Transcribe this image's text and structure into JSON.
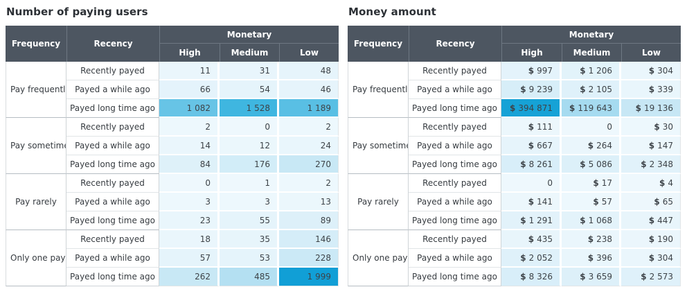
{
  "style": {
    "header_bg": "#4d5661",
    "header_text": "#ffffff",
    "header_line": "#6e7883",
    "title_text": "#2d3136",
    "label_text": "#363b40",
    "value_text": "#3d4348",
    "row_line": "#e1e5e7",
    "group_line": "#b6bdc3",
    "col_line": "#cfd4d7",
    "outer_line": "#d8dcdf",
    "heat_gap": "#ffffff",
    "heat_max_color": "#119fd6",
    "heat_min_color": "#eef8fd"
  },
  "chart_data": [
    {
      "type": "heatmap",
      "title": "Number of paying users",
      "currency": false,
      "headers": {
        "frequency": "Frequency",
        "recency": "Recency",
        "monetary": "Monetary",
        "levels": [
          "High",
          "Medium",
          "Low"
        ]
      },
      "groups": [
        {
          "frequency": "Pay frequently",
          "rows": [
            {
              "recency": "Recently payed",
              "cells": [
                {
                  "value": 11,
                  "text": "11",
                  "bg": "#eaf6fc"
                },
                {
                  "value": 31,
                  "text": "31",
                  "bg": "#e8f5fc"
                },
                {
                  "value": 48,
                  "text": "48",
                  "bg": "#e6f4fb"
                }
              ]
            },
            {
              "recency": "Payed a while ago",
              "cells": [
                {
                  "value": 66,
                  "text": "66",
                  "bg": "#e4f3fb"
                },
                {
                  "value": 54,
                  "text": "54",
                  "bg": "#e5f4fb"
                },
                {
                  "value": 46,
                  "text": "46",
                  "bg": "#e6f4fb"
                }
              ]
            },
            {
              "recency": "Payed long time ago",
              "cells": [
                {
                  "value": 1082,
                  "text": "1 082",
                  "bg": "#67c4e6"
                },
                {
                  "value": 1528,
                  "text": "1 528",
                  "bg": "#3fb6e0"
                },
                {
                  "value": 1189,
                  "text": "1 189",
                  "bg": "#59bfe4"
                }
              ]
            }
          ]
        },
        {
          "frequency": "Pay sometimes",
          "rows": [
            {
              "recency": "Recently payed",
              "cells": [
                {
                  "value": 2,
                  "text": "2",
                  "bg": "#edf8fd"
                },
                {
                  "value": 0,
                  "text": "0",
                  "bg": "#eef8fd"
                },
                {
                  "value": 2,
                  "text": "2",
                  "bg": "#edf8fd"
                }
              ]
            },
            {
              "recency": "Payed a while ago",
              "cells": [
                {
                  "value": 14,
                  "text": "14",
                  "bg": "#eaf6fc"
                },
                {
                  "value": 12,
                  "text": "12",
                  "bg": "#ebf7fc"
                },
                {
                  "value": 24,
                  "text": "24",
                  "bg": "#e9f6fc"
                }
              ]
            },
            {
              "recency": "Payed long time ago",
              "cells": [
                {
                  "value": 84,
                  "text": "84",
                  "bg": "#def1f9"
                },
                {
                  "value": 176,
                  "text": "176",
                  "bg": "#d2edf8"
                },
                {
                  "value": 270,
                  "text": "270",
                  "bg": "#c8e8f5"
                }
              ]
            }
          ]
        },
        {
          "frequency": "Pay rarely",
          "rows": [
            {
              "recency": "Recently payed",
              "cells": [
                {
                  "value": 0,
                  "text": "0",
                  "bg": "#eef8fd"
                },
                {
                  "value": 1,
                  "text": "1",
                  "bg": "#eef8fd"
                },
                {
                  "value": 2,
                  "text": "2",
                  "bg": "#edf8fd"
                }
              ]
            },
            {
              "recency": "Payed a while ago",
              "cells": [
                {
                  "value": 3,
                  "text": "3",
                  "bg": "#edf8fd"
                },
                {
                  "value": 3,
                  "text": "3",
                  "bg": "#edf8fd"
                },
                {
                  "value": 13,
                  "text": "13",
                  "bg": "#ebf7fc"
                }
              ]
            },
            {
              "recency": "Payed long time ago",
              "cells": [
                {
                  "value": 23,
                  "text": "23",
                  "bg": "#e9f6fc"
                },
                {
                  "value": 55,
                  "text": "55",
                  "bg": "#e5f4fb"
                },
                {
                  "value": 89,
                  "text": "89",
                  "bg": "#ddf0f9"
                }
              ]
            }
          ]
        },
        {
          "frequency": "Only one payment",
          "rows": [
            {
              "recency": "Recently payed",
              "cells": [
                {
                  "value": 18,
                  "text": "18",
                  "bg": "#eaf6fc"
                },
                {
                  "value": 35,
                  "text": "35",
                  "bg": "#e7f5fb"
                },
                {
                  "value": 146,
                  "text": "146",
                  "bg": "#d5edf8"
                }
              ]
            },
            {
              "recency": "Payed a while ago",
              "cells": [
                {
                  "value": 57,
                  "text": "57",
                  "bg": "#e5f4fb"
                },
                {
                  "value": 53,
                  "text": "53",
                  "bg": "#e5f4fb"
                },
                {
                  "value": 228,
                  "text": "228",
                  "bg": "#cbe9f6"
                }
              ]
            },
            {
              "recency": "Payed long time ago",
              "cells": [
                {
                  "value": 262,
                  "text": "262",
                  "bg": "#c8e8f5"
                },
                {
                  "value": 485,
                  "text": "485",
                  "bg": "#b4e0f2"
                },
                {
                  "value": 1999,
                  "text": "1 999",
                  "bg": "#119fd6"
                }
              ]
            }
          ]
        }
      ]
    },
    {
      "type": "heatmap",
      "title": "Money amount",
      "currency": true,
      "currency_symbol": "$",
      "headers": {
        "frequency": "Frequency",
        "recency": "Recency",
        "monetary": "Monetary",
        "levels": [
          "High",
          "Medium",
          "Low"
        ]
      },
      "groups": [
        {
          "frequency": "Pay frequently",
          "rows": [
            {
              "recency": "Recently payed",
              "cells": [
                {
                  "value": 997,
                  "text": "997",
                  "dollar": true,
                  "bg": "#e4f3fb"
                },
                {
                  "value": 1206,
                  "text": "1 206",
                  "dollar": true,
                  "bg": "#e2f3fa"
                },
                {
                  "value": 304,
                  "text": "304",
                  "dollar": true,
                  "bg": "#eaf6fc"
                }
              ]
            },
            {
              "recency": "Payed a while ago",
              "cells": [
                {
                  "value": 9239,
                  "text": "9 239",
                  "dollar": true,
                  "bg": "#d7eef8"
                },
                {
                  "value": 2105,
                  "text": "2 105",
                  "dollar": true,
                  "bg": "#dff1fa"
                },
                {
                  "value": 339,
                  "text": "339",
                  "dollar": true,
                  "bg": "#e9f6fc"
                }
              ]
            },
            {
              "recency": "Payed long time ago",
              "cells": [
                {
                  "value": 394871,
                  "text": "394 871",
                  "dollar": true,
                  "bg": "#16a2d6"
                },
                {
                  "value": 119643,
                  "text": "119 643",
                  "dollar": true,
                  "bg": "#a6dbf0"
                },
                {
                  "value": 19136,
                  "text": "19 136",
                  "dollar": true,
                  "bg": "#c7e7f5"
                }
              ]
            }
          ]
        },
        {
          "frequency": "Pay sometimes",
          "rows": [
            {
              "recency": "Recently payed",
              "cells": [
                {
                  "value": 111,
                  "text": "111",
                  "dollar": true,
                  "bg": "#ecf7fc"
                },
                {
                  "value": 0,
                  "text": "0",
                  "dollar": false,
                  "bg": "#eef8fd"
                },
                {
                  "value": 30,
                  "text": "30",
                  "dollar": true,
                  "bg": "#edf8fd"
                }
              ]
            },
            {
              "recency": "Payed a while ago",
              "cells": [
                {
                  "value": 667,
                  "text": "667",
                  "dollar": true,
                  "bg": "#e6f4fb"
                },
                {
                  "value": 264,
                  "text": "264",
                  "dollar": true,
                  "bg": "#eaf6fc"
                },
                {
                  "value": 147,
                  "text": "147",
                  "dollar": true,
                  "bg": "#ecf7fc"
                }
              ]
            },
            {
              "recency": "Payed long time ago",
              "cells": [
                {
                  "value": 8261,
                  "text": "8 261",
                  "dollar": true,
                  "bg": "#d8eef9"
                },
                {
                  "value": 5086,
                  "text": "5 086",
                  "dollar": true,
                  "bg": "#dcf0f9"
                },
                {
                  "value": 2348,
                  "text": "2 348",
                  "dollar": true,
                  "bg": "#e1f2fa"
                }
              ]
            }
          ]
        },
        {
          "frequency": "Pay rarely",
          "rows": [
            {
              "recency": "Recently payed",
              "cells": [
                {
                  "value": 0,
                  "text": "0",
                  "dollar": false,
                  "bg": "#eef8fd"
                },
                {
                  "value": 17,
                  "text": "17",
                  "dollar": true,
                  "bg": "#edf8fd"
                },
                {
                  "value": 4,
                  "text": "4",
                  "dollar": true,
                  "bg": "#eef8fd"
                }
              ]
            },
            {
              "recency": "Payed a while ago",
              "cells": [
                {
                  "value": 141,
                  "text": "141",
                  "dollar": true,
                  "bg": "#ecf7fc"
                },
                {
                  "value": 57,
                  "text": "57",
                  "dollar": true,
                  "bg": "#edf8fd"
                },
                {
                  "value": 65,
                  "text": "65",
                  "dollar": true,
                  "bg": "#edf7fc"
                }
              ]
            },
            {
              "recency": "Payed long time ago",
              "cells": [
                {
                  "value": 1291,
                  "text": "1 291",
                  "dollar": true,
                  "bg": "#e2f2fa"
                },
                {
                  "value": 1068,
                  "text": "1 068",
                  "dollar": true,
                  "bg": "#e3f3fa"
                },
                {
                  "value": 447,
                  "text": "447",
                  "dollar": true,
                  "bg": "#e8f5fb"
                }
              ]
            }
          ]
        },
        {
          "frequency": "Only one payment",
          "rows": [
            {
              "recency": "Recently payed",
              "cells": [
                {
                  "value": 435,
                  "text": "435",
                  "dollar": true,
                  "bg": "#e8f5fb"
                },
                {
                  "value": 238,
                  "text": "238",
                  "dollar": true,
                  "bg": "#eaf6fc"
                },
                {
                  "value": 190,
                  "text": "190",
                  "dollar": true,
                  "bg": "#ebf6fc"
                }
              ]
            },
            {
              "recency": "Payed a while ago",
              "cells": [
                {
                  "value": 2052,
                  "text": "2 052",
                  "dollar": true,
                  "bg": "#dff1fa"
                },
                {
                  "value": 396,
                  "text": "396",
                  "dollar": true,
                  "bg": "#e9f6fc"
                },
                {
                  "value": 304,
                  "text": "304",
                  "dollar": true,
                  "bg": "#eaf6fc"
                }
              ]
            },
            {
              "recency": "Payed long time ago",
              "cells": [
                {
                  "value": 8326,
                  "text": "8 326",
                  "dollar": true,
                  "bg": "#d8eef9"
                },
                {
                  "value": 3659,
                  "text": "3 659",
                  "dollar": true,
                  "bg": "#ddf0f9"
                },
                {
                  "value": 2573,
                  "text": "2 573",
                  "dollar": true,
                  "bg": "#dff1fa"
                }
              ]
            }
          ]
        }
      ]
    }
  ]
}
